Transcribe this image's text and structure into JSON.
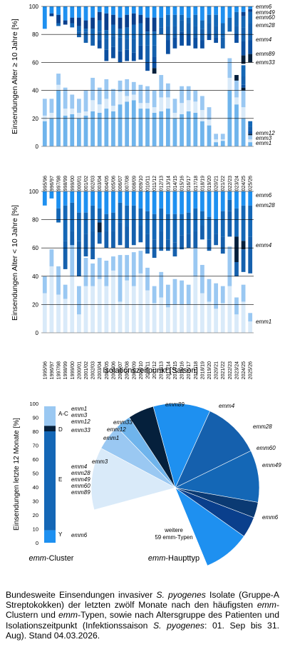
{
  "colors": {
    "emm6": "#1e90f0",
    "emm49": "#0a3f8c",
    "emm60": "#0b3a73",
    "emm28": "#1467b6",
    "emm4": "#1560ad",
    "emm89": "#0c4fa0",
    "emm33": "#05203c",
    "emm12": "#6fb4ec",
    "emm3": "#d9eaf9",
    "emm1": "#9ac8f2",
    "weitere": "#ffffff",
    "grid": "#000000"
  },
  "chart_data": [
    {
      "type": "bar",
      "stacked": true,
      "ylabel": "Einsendungen Alter ≥ 10 Jahre [%]",
      "ylim": [
        0,
        100
      ],
      "yticks": [
        0,
        20,
        40,
        60,
        80,
        100
      ],
      "grid": true,
      "categories": [
        "1995/96",
        "1996/97",
        "1997/98",
        "1998/99",
        "1999/00",
        "2000/01",
        "2001/02",
        "2002/03",
        "2003/04",
        "2004/05",
        "2005/06",
        "2006/07",
        "2007/08",
        "2008/09",
        "2009/10",
        "2010/11",
        "2011/12",
        "2012/13",
        "2013/14",
        "2014/15",
        "2015/16",
        "2016/17",
        "2017/18",
        "2018/19",
        "2019/20",
        "2020/21",
        "2021/22",
        "2022/23",
        "2023/24",
        "2024/25",
        "2025/26"
      ],
      "legend_labels": [
        "emm6",
        "emm49",
        "emm60",
        "emm28",
        "emm4",
        "emm89",
        "emm33",
        "emm12",
        "emm3",
        "emm1"
      ],
      "series": [
        {
          "name": "emm1",
          "values": [
            18,
            20,
            40,
            22,
            23,
            20,
            22,
            25,
            24,
            27,
            25,
            30,
            32,
            33,
            27,
            27,
            24,
            25,
            27,
            20,
            23,
            25,
            24,
            18,
            15,
            3,
            4,
            40,
            30,
            20,
            3
          ]
        },
        {
          "name": "emm3",
          "values": [
            4,
            4,
            4,
            5,
            4,
            4,
            3,
            8,
            6,
            7,
            4,
            9,
            4,
            4,
            4,
            4,
            4,
            10,
            8,
            4,
            8,
            8,
            8,
            8,
            4,
            2,
            1,
            9,
            5,
            8,
            2
          ]
        },
        {
          "name": "emm12",
          "values": [
            12,
            10,
            8,
            15,
            10,
            10,
            15,
            16,
            12,
            14,
            12,
            8,
            12,
            9,
            13,
            12,
            12,
            16,
            10,
            10,
            12,
            10,
            8,
            10,
            9,
            4,
            4,
            14,
            12,
            12,
            3
          ]
        },
        {
          "name": "emm33",
          "values": [
            0,
            0,
            0,
            0,
            0,
            0,
            0,
            0,
            0,
            0,
            0,
            0,
            0,
            0,
            0,
            0,
            0,
            0,
            0,
            0,
            0,
            0,
            0,
            0,
            0,
            0,
            0,
            0,
            4,
            2,
            1
          ]
        },
        {
          "name": "emm89",
          "values": [
            0,
            0,
            0,
            0,
            0,
            0,
            0,
            0,
            0,
            0,
            0,
            0,
            0,
            0,
            0,
            0,
            0,
            0,
            0,
            0,
            0,
            0,
            0,
            0,
            0,
            0,
            0,
            0,
            0,
            2,
            2
          ]
        },
        {
          "name": "emm4",
          "values": [
            0,
            0,
            0,
            0,
            0,
            0,
            0,
            0,
            0,
            0,
            0,
            0,
            0,
            0,
            0,
            0,
            0,
            0,
            0,
            0,
            0,
            0,
            0,
            0,
            0,
            0,
            0,
            0,
            0,
            6,
            3
          ]
        },
        {
          "name": "emm28",
          "values": [
            0,
            0,
            0,
            0,
            0,
            0,
            0,
            0,
            0,
            0,
            0,
            0,
            0,
            0,
            0,
            0,
            0,
            0,
            0,
            0,
            0,
            0,
            0,
            0,
            0,
            0,
            0,
            0,
            0,
            8,
            4
          ]
        },
        {
          "name": "emm60",
          "values": [
            0,
            0,
            0,
            0,
            0,
            0,
            0,
            0,
            0,
            0,
            0,
            0,
            0,
            0,
            0,
            0,
            0,
            0,
            0,
            0,
            0,
            0,
            0,
            0,
            0,
            0,
            0,
            0,
            0,
            0,
            0
          ]
        },
        {
          "name": "emm49",
          "values": [
            0,
            0,
            0,
            0,
            0,
            0,
            0,
            0,
            0,
            0,
            0,
            0,
            0,
            0,
            0,
            0,
            0,
            0,
            0,
            0,
            0,
            0,
            0,
            0,
            0,
            0,
            0,
            0,
            0,
            0,
            0
          ]
        },
        {
          "name": "emm6",
          "values": [
            0,
            0,
            0,
            0,
            0,
            0,
            0,
            0,
            0,
            0,
            0,
            0,
            0,
            0,
            0,
            0,
            0,
            0,
            0,
            0,
            0,
            0,
            0,
            0,
            0,
            0,
            0,
            0,
            0,
            0,
            0
          ]
        }
      ],
      "upper_series": [
        {
          "name": "emm6",
          "values": [
            16,
            5,
            6,
            10,
            8,
            8,
            10,
            8,
            4,
            5,
            6,
            8,
            6,
            5,
            6,
            8,
            8,
            8,
            6,
            6,
            6,
            8,
            6,
            10,
            6,
            6,
            12,
            8,
            4,
            4,
            2
          ]
        },
        {
          "name": "emm49",
          "values": [
            0,
            2,
            6,
            3,
            4,
            6,
            6,
            8,
            6,
            12,
            7,
            8,
            9,
            8,
            6,
            10,
            10,
            0,
            0,
            0,
            0,
            0,
            0,
            0,
            0,
            0,
            0,
            0,
            0,
            3,
            2
          ]
        },
        {
          "name": "emm28",
          "values": [
            0,
            0,
            2,
            0,
            3,
            4,
            2,
            4,
            8,
            6,
            8,
            6,
            8,
            10,
            8,
            10,
            10,
            7,
            8,
            8,
            4,
            4,
            8,
            6,
            6,
            8,
            10,
            10,
            10,
            8,
            8
          ]
        },
        {
          "name": "emm4",
          "values": [
            0,
            0,
            0,
            0,
            0,
            4,
            8,
            8,
            6,
            8,
            8,
            10,
            8,
            10,
            8,
            12,
            8,
            5,
            10,
            8,
            8,
            8,
            8,
            8,
            8,
            8,
            8,
            0,
            6,
            10,
            12
          ]
        },
        {
          "name": "emm89",
          "values": [
            0,
            0,
            0,
            0,
            0,
            0,
            0,
            0,
            6,
            8,
            8,
            8,
            8,
            6,
            10,
            6,
            8,
            0,
            10,
            8,
            10,
            8,
            8,
            6,
            4,
            4,
            0,
            0,
            6,
            10,
            10
          ]
        },
        {
          "name": "emm33",
          "values": [
            0,
            0,
            0,
            0,
            0,
            0,
            0,
            0,
            0,
            0,
            0,
            0,
            0,
            0,
            0,
            0,
            4,
            0,
            0,
            0,
            0,
            0,
            0,
            0,
            0,
            0,
            0,
            0,
            0,
            6,
            6
          ]
        }
      ],
      "label_emm6": "emm6",
      "label_emm49": "emm49",
      "label_emm60": "emm60",
      "label_emm28": "emm28",
      "label_emm4": "emm4",
      "label_emm89": "emm89",
      "label_emm33": "emm33",
      "label_emm12": "emm12",
      "label_emm3": "emm3",
      "label_emm1": "emm1"
    },
    {
      "type": "bar",
      "stacked": true,
      "ylabel": "Einsendungen Alter < 10 Jahre [%]",
      "xlabel": "Isolationszeitpunkt [Saison]",
      "ylim": [
        0,
        100
      ],
      "yticks": [
        0,
        20,
        40,
        60,
        80,
        100
      ],
      "grid": true,
      "legend_labels": [
        "emm6",
        "emm28",
        "emm4",
        "emm1"
      ],
      "emm1_values": [
        28,
        47,
        27,
        24,
        40,
        13,
        33,
        33,
        38,
        33,
        44,
        22,
        37,
        33,
        42,
        30,
        21,
        25,
        18,
        20,
        20,
        20,
        40,
        28,
        22,
        17,
        21,
        33,
        13,
        22,
        8
      ],
      "emm12_values": [
        12,
        12,
        20,
        10,
        26,
        20,
        20,
        16,
        15,
        18,
        10,
        33,
        18,
        24,
        16,
        16,
        12,
        18,
        16,
        18,
        17,
        14,
        20,
        20,
        16,
        18,
        12,
        28,
        12,
        12,
        6
      ],
      "emm4_values": [
        0,
        0,
        0,
        20,
        10,
        25,
        16,
        20,
        8,
        12,
        12,
        16,
        15,
        18,
        12,
        14,
        13,
        14,
        8,
        10,
        10,
        10,
        12,
        10,
        8,
        8,
        12,
        18,
        10,
        16,
        26
      ],
      "emm28_values": [
        0,
        0,
        10,
        25,
        20,
        20,
        15,
        18,
        10,
        12,
        13,
        14,
        15,
        10,
        12,
        16,
        18,
        16,
        18,
        20,
        15,
        15,
        16,
        10,
        16,
        10,
        18,
        8,
        20,
        25,
        22
      ],
      "emm6_values": [
        10,
        5,
        12,
        10,
        8,
        15,
        15,
        10,
        12,
        16,
        15,
        8,
        10,
        10,
        12,
        14,
        16,
        12,
        16,
        16,
        16,
        15,
        12,
        14,
        18,
        20,
        14,
        6,
        12,
        10,
        10
      ],
      "emm33_values": [
        0,
        0,
        0,
        0,
        0,
        0,
        0,
        0,
        7,
        0,
        0,
        0,
        0,
        0,
        0,
        0,
        0,
        0,
        0,
        0,
        0,
        0,
        0,
        0,
        0,
        0,
        0,
        0,
        18,
        6,
        0
      ]
    },
    {
      "type": "bar",
      "title": "emm-Cluster",
      "ylabel": "Einsendungen letzte 12 Monate [%]",
      "ylim": [
        0,
        100
      ],
      "yticks": [
        0,
        10,
        20,
        30,
        40,
        50,
        60,
        70,
        80,
        90,
        100
      ],
      "categories": [
        "Y",
        "E",
        "D",
        "A-C"
      ],
      "values": [
        9,
        71,
        4,
        14
      ],
      "series_labels": {
        "A-C": [
          "emm1",
          "emm3",
          "emm12"
        ],
        "D": [
          "emm33"
        ],
        "E": [
          "emm4",
          "emm28",
          "emm49",
          "emm60",
          "emm89"
        ],
        "Y": [
          "emm6"
        ]
      },
      "cluster_labels": [
        "A-C",
        "D",
        "E",
        "Y"
      ]
    },
    {
      "type": "pie",
      "title": "emm-Haupttyp",
      "slices": [
        {
          "name": "emm1",
          "value": 5
        },
        {
          "name": "emm12",
          "value": 3
        },
        {
          "name": "emm33",
          "value": 5
        },
        {
          "name": "emm89",
          "value": 11
        },
        {
          "name": "emm4",
          "value": 11
        },
        {
          "name": "emm28",
          "value": 10
        },
        {
          "name": "emm60",
          "value": 3
        },
        {
          "name": "emm49",
          "value": 4
        },
        {
          "name": "emm6",
          "value": 9
        },
        {
          "name": "weitere",
          "value": 27
        },
        {
          "name": "emm3",
          "value": 12
        }
      ],
      "weitere_line1": "weitere",
      "weitere_line2": "59 emm-Typen"
    }
  ],
  "caption": {
    "p1": "Bundesweite Einsendungen invasiver ",
    "species1": "S. pyogenes",
    "p2": " Isolate (Gruppe-A Streptokokken) der letzten zwölf Monate nach den häufigsten ",
    "emm1": "emm",
    "p3": "-Clustern und ",
    "emm2": "emm",
    "p4": "-Typen, sowie nach Altersgruppe des Patienten und Isolationszeitpunkt (Infektionssaison ",
    "species2": "S. pyogenes",
    "p5": ": 01. Sep bis 31. Aug). Stand 04.03.2026."
  }
}
